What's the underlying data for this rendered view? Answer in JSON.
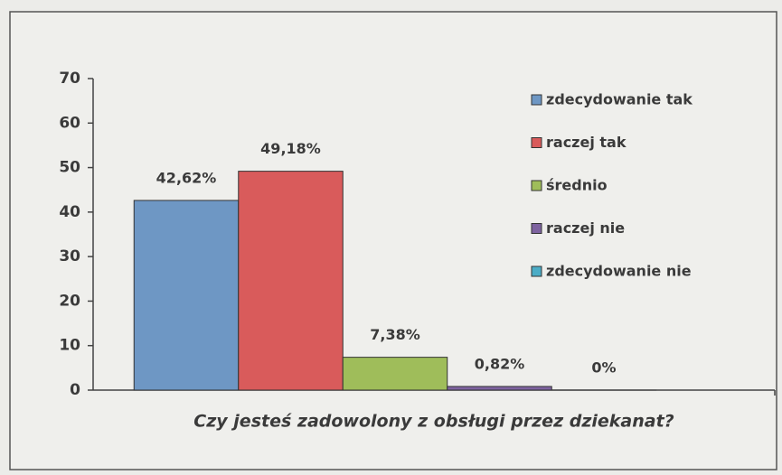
{
  "chart_data": {
    "type": "bar",
    "categories": [
      "Czy jesteś zadowolony z obsługi przez dziekanat?"
    ],
    "series": [
      {
        "name": "zdecydowanie tak",
        "color": "#6e97c4",
        "values": [
          42.62
        ],
        "value_labels": [
          "42,62%"
        ]
      },
      {
        "name": "raczej tak",
        "color": "#d95b5b",
        "values": [
          49.18
        ],
        "value_labels": [
          "49,18%"
        ]
      },
      {
        "name": "średnio",
        "color": "#9fbd5a",
        "values": [
          7.38
        ],
        "value_labels": [
          "7,38%"
        ]
      },
      {
        "name": "raczej nie",
        "color": "#7e63a0",
        "values": [
          0.82
        ],
        "value_labels": [
          "0,82%"
        ]
      },
      {
        "name": "zdecydowanie nie",
        "color": "#4bacc6",
        "values": [
          0
        ],
        "value_labels": [
          "0%"
        ]
      }
    ],
    "ylim": [
      0,
      70
    ],
    "yticks": [
      0,
      10,
      20,
      30,
      40,
      50,
      60,
      70
    ],
    "legend": "right"
  }
}
